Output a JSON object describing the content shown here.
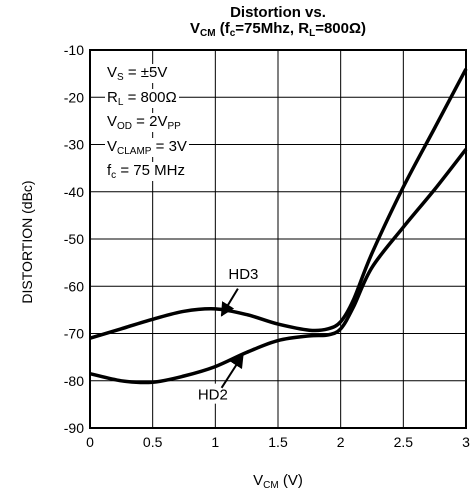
{
  "title": {
    "line1": "Distortion vs.",
    "line2_prefix": "V",
    "line2_sub1": "CM",
    "line2_mid": " (f",
    "line2_sub2": "c",
    "line2_mid2": "=75Mhz, R",
    "line2_sub3": "L",
    "line2_end": "=800Ω)"
  },
  "conditions": [
    {
      "pre": "V",
      "sub": "S",
      "post": " = ±5V"
    },
    {
      "pre": "R",
      "sub": "L",
      "post": " = 800Ω"
    },
    {
      "pre": "V",
      "sub": "OD",
      "post": " = 2V",
      "sub2": "PP"
    },
    {
      "pre": "V",
      "sub": "CLAMP",
      "post": " = 3V"
    },
    {
      "pre": "f",
      "sub": "c",
      "post": " = 75 MHz"
    }
  ],
  "axis": {
    "ylabel": "DISTORTION (dBc)",
    "xlabel_pre": "V",
    "xlabel_sub": "CM",
    "xlabel_post": " (V)"
  },
  "chart_data": {
    "type": "line",
    "title": "Distortion vs. VCM (fc=75Mhz, RL=800Ω)",
    "xlabel": "VCM (V)",
    "ylabel": "DISTORTION (dBc)",
    "xlim": [
      0,
      3
    ],
    "ylim": [
      -90,
      -10
    ],
    "xticks": [
      0,
      0.5,
      1,
      1.5,
      2,
      2.5,
      3
    ],
    "xtick_labels": [
      "0",
      "0.5",
      "1",
      "1.5",
      "2",
      "2.5",
      "3"
    ],
    "yticks": [
      -90,
      -80,
      -70,
      -60,
      -50,
      -40,
      -30,
      -20,
      -10
    ],
    "ytick_labels": [
      "-90",
      "-80",
      "-70",
      "-60",
      "-50",
      "-40",
      "-30",
      "-20",
      "-10"
    ],
    "grid": true,
    "series": [
      {
        "name": "HD3",
        "x": [
          0,
          0.25,
          0.5,
          0.75,
          1.0,
          1.25,
          1.5,
          1.75,
          1.9,
          2.0,
          2.1,
          2.25,
          2.5,
          2.75,
          3.0
        ],
        "y": [
          -71,
          -69,
          -67,
          -65.3,
          -64.8,
          -66,
          -68,
          -69.3,
          -69,
          -67.5,
          -63,
          -53,
          -39,
          -26.5,
          -14
        ]
      },
      {
        "name": "HD2",
        "x": [
          0,
          0.25,
          0.5,
          0.75,
          1.0,
          1.25,
          1.5,
          1.75,
          1.9,
          2.0,
          2.1,
          2.25,
          2.5,
          2.75,
          3.0
        ],
        "y": [
          -78.5,
          -80,
          -80.3,
          -79,
          -77,
          -74,
          -71.5,
          -70.5,
          -70.3,
          -69,
          -64.5,
          -56,
          -47.5,
          -39.5,
          -31
        ]
      }
    ],
    "annotations": [
      "HD3",
      "HD2"
    ]
  }
}
